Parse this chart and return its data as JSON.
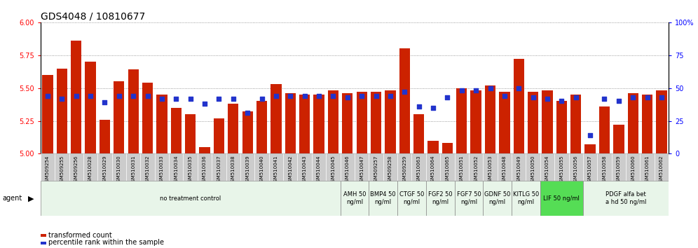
{
  "title": "GDS4048 / 10810677",
  "samples": [
    "GSM509254",
    "GSM509255",
    "GSM509256",
    "GSM510028",
    "GSM510029",
    "GSM510030",
    "GSM510031",
    "GSM510032",
    "GSM510033",
    "GSM510034",
    "GSM510035",
    "GSM510036",
    "GSM510037",
    "GSM510038",
    "GSM510039",
    "GSM510040",
    "GSM510041",
    "GSM510042",
    "GSM510043",
    "GSM510044",
    "GSM510045",
    "GSM510046",
    "GSM510047",
    "GSM509257",
    "GSM509258",
    "GSM509259",
    "GSM510063",
    "GSM510064",
    "GSM510065",
    "GSM510051",
    "GSM510052",
    "GSM510053",
    "GSM510048",
    "GSM510049",
    "GSM510050",
    "GSM510054",
    "GSM510055",
    "GSM510056",
    "GSM510057",
    "GSM510058",
    "GSM510059",
    "GSM510060",
    "GSM510061",
    "GSM510062"
  ],
  "bar_values": [
    5.6,
    5.65,
    5.86,
    5.7,
    5.26,
    5.55,
    5.64,
    5.54,
    5.45,
    5.35,
    5.3,
    5.05,
    5.27,
    5.38,
    5.32,
    5.4,
    5.53,
    5.46,
    5.45,
    5.45,
    5.48,
    5.46,
    5.47,
    5.47,
    5.48,
    5.8,
    5.3,
    5.1,
    5.08,
    5.5,
    5.48,
    5.52,
    5.47,
    5.72,
    5.47,
    5.48,
    5.4,
    5.45,
    5.07,
    5.36,
    5.22,
    5.46,
    5.45,
    5.48
  ],
  "percentile_values": [
    44,
    42,
    44,
    44,
    39,
    44,
    44,
    44,
    42,
    42,
    42,
    38,
    42,
    42,
    31,
    42,
    44,
    44,
    44,
    44,
    44,
    43,
    44,
    44,
    44,
    47,
    36,
    35,
    43,
    48,
    48,
    50,
    44,
    50,
    43,
    42,
    40,
    43,
    14,
    42,
    40,
    43,
    43,
    43
  ],
  "agents": [
    {
      "label": "no treatment control",
      "start": 0,
      "end": 21,
      "color": "#e8f5e9",
      "bright": false
    },
    {
      "label": "AMH 50\nng/ml",
      "start": 21,
      "end": 23,
      "color": "#e8f5e9",
      "bright": false
    },
    {
      "label": "BMP4 50\nng/ml",
      "start": 23,
      "end": 25,
      "color": "#e8f5e9",
      "bright": false
    },
    {
      "label": "CTGF 50\nng/ml",
      "start": 25,
      "end": 27,
      "color": "#e8f5e9",
      "bright": false
    },
    {
      "label": "FGF2 50\nng/ml",
      "start": 27,
      "end": 29,
      "color": "#e8f5e9",
      "bright": false
    },
    {
      "label": "FGF7 50\nng/ml",
      "start": 29,
      "end": 31,
      "color": "#e8f5e9",
      "bright": false
    },
    {
      "label": "GDNF 50\nng/ml",
      "start": 31,
      "end": 33,
      "color": "#e8f5e9",
      "bright": false
    },
    {
      "label": "KITLG 50\nng/ml",
      "start": 33,
      "end": 35,
      "color": "#e8f5e9",
      "bright": false
    },
    {
      "label": "LIF 50 ng/ml",
      "start": 35,
      "end": 38,
      "color": "#55dd55",
      "bright": true
    },
    {
      "label": "PDGF alfa bet\na hd 50 ng/ml",
      "start": 38,
      "end": 44,
      "color": "#e8f5e9",
      "bright": false
    }
  ],
  "bar_color": "#cc2200",
  "dot_color": "#2233cc",
  "ylim_left": [
    5.0,
    6.0
  ],
  "ylim_right": [
    0,
    100
  ],
  "yticks_left": [
    5.0,
    5.25,
    5.5,
    5.75,
    6.0
  ],
  "yticks_right": [
    0,
    25,
    50,
    75,
    100
  ],
  "bar_width": 0.75,
  "ybase": 5.0,
  "dot_size": 18,
  "title_fontsize": 10,
  "tick_fontsize": 5,
  "agent_fontsize": 6,
  "legend_fontsize": 7
}
